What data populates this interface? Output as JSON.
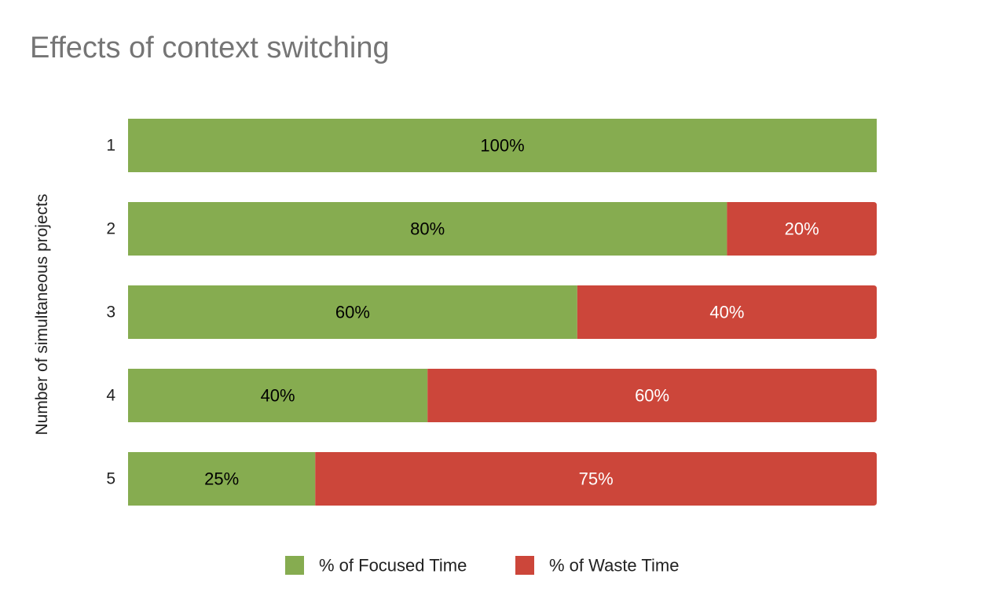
{
  "chart_data": {
    "type": "bar",
    "orientation": "horizontal",
    "stacked": true,
    "title": "Effects of context switching",
    "ylabel": "Number of simultaneous projects",
    "xlabel": "",
    "categories": [
      "1",
      "2",
      "3",
      "4",
      "5"
    ],
    "xlim": [
      0,
      100
    ],
    "grid": false,
    "legend_position": "bottom",
    "series": [
      {
        "name": "% of Focused Time",
        "color": "#86ac50",
        "label_color": "#000000",
        "values": [
          100,
          80,
          60,
          40,
          25
        ],
        "labels": [
          "100%",
          "80%",
          "60%",
          "40%",
          "25%"
        ]
      },
      {
        "name": "% of Waste Time",
        "color": "#cc463a",
        "label_color": "#ffffff",
        "values": [
          0,
          20,
          40,
          60,
          75
        ],
        "labels": [
          "",
          "20%",
          "40%",
          "60%",
          "75%"
        ]
      }
    ]
  }
}
